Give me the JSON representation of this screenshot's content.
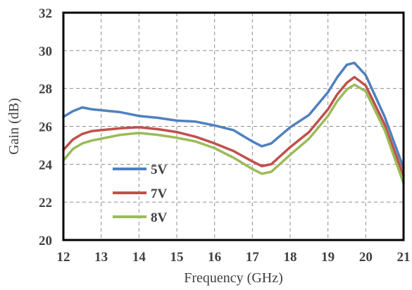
{
  "chart_data": {
    "type": "line",
    "title": "",
    "xlabel": "Frequency (GHz)",
    "ylabel": "Gain (dB)",
    "xlim": [
      12,
      21
    ],
    "ylim": [
      20,
      32
    ],
    "xticks": [
      12,
      13,
      14,
      15,
      16,
      17,
      18,
      19,
      20,
      21
    ],
    "yticks": [
      20,
      22,
      24,
      26,
      28,
      30,
      32
    ],
    "grid": true,
    "legend_position": "bottom-left",
    "series": [
      {
        "name": "5V",
        "color": "#4f81bd",
        "x": [
          12.0,
          12.25,
          12.5,
          12.75,
          13.0,
          13.5,
          14.0,
          14.5,
          15.0,
          15.5,
          16.0,
          16.5,
          17.0,
          17.25,
          17.5,
          18.0,
          18.5,
          19.0,
          19.25,
          19.5,
          19.7,
          20.0,
          20.5,
          21.0
        ],
        "values": [
          26.5,
          26.8,
          27.0,
          26.9,
          26.85,
          26.75,
          26.55,
          26.45,
          26.3,
          26.25,
          26.05,
          25.8,
          25.2,
          24.95,
          25.1,
          25.95,
          26.6,
          27.8,
          28.6,
          29.25,
          29.35,
          28.7,
          26.5,
          23.8
        ]
      },
      {
        "name": "7V",
        "color": "#c0504d",
        "x": [
          12.0,
          12.25,
          12.5,
          12.75,
          13.0,
          13.5,
          14.0,
          14.5,
          15.0,
          15.5,
          16.0,
          16.5,
          17.0,
          17.25,
          17.5,
          18.0,
          18.5,
          19.0,
          19.25,
          19.5,
          19.7,
          20.0,
          20.5,
          21.0
        ],
        "values": [
          24.75,
          25.3,
          25.6,
          25.75,
          25.8,
          25.9,
          25.95,
          25.85,
          25.7,
          25.45,
          25.1,
          24.7,
          24.15,
          23.9,
          24.0,
          24.9,
          25.7,
          26.9,
          27.7,
          28.3,
          28.6,
          28.15,
          26.1,
          23.4
        ]
      },
      {
        "name": "8V",
        "color": "#9bbb59",
        "x": [
          12.0,
          12.25,
          12.5,
          12.75,
          13.0,
          13.5,
          14.0,
          14.5,
          15.0,
          15.5,
          16.0,
          16.5,
          17.0,
          17.25,
          17.5,
          18.0,
          18.5,
          19.0,
          19.25,
          19.5,
          19.7,
          20.0,
          20.5,
          21.0
        ],
        "values": [
          24.2,
          24.8,
          25.1,
          25.25,
          25.35,
          25.55,
          25.65,
          25.55,
          25.4,
          25.2,
          24.85,
          24.35,
          23.75,
          23.5,
          23.6,
          24.5,
          25.35,
          26.55,
          27.35,
          27.95,
          28.2,
          27.85,
          25.8,
          23.0
        ]
      }
    ]
  }
}
